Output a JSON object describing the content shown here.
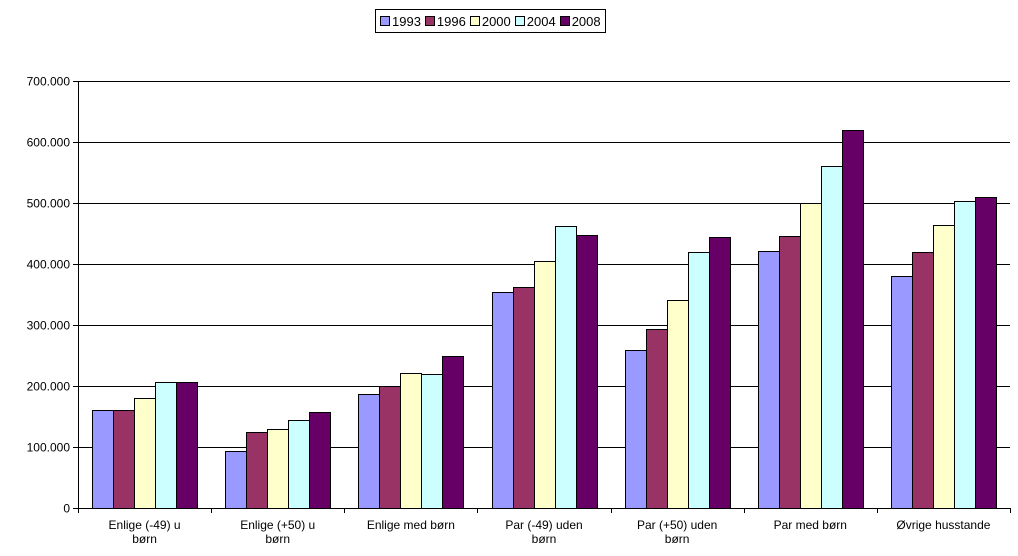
{
  "chart_data": {
    "type": "bar",
    "categories": [
      [
        "Enlige (-49) u",
        "børn"
      ],
      [
        "Enlige (+50) u",
        "børn"
      ],
      [
        "Enlige med børn"
      ],
      [
        "Par (-49) uden",
        "børn"
      ],
      [
        "Par (+50) uden",
        "børn"
      ],
      [
        "Par med børn"
      ],
      [
        "Øvrige husstande"
      ]
    ],
    "series": [
      {
        "name": "1993",
        "color": "#9999FF",
        "values": [
          160000,
          93000,
          187000,
          354000,
          259000,
          421000,
          381000
        ]
      },
      {
        "name": "1996",
        "color": "#993366",
        "values": [
          160000,
          124000,
          200000,
          362000,
          294000,
          446000,
          419000
        ]
      },
      {
        "name": "2000",
        "color": "#FFFFCC",
        "values": [
          181000,
          130000,
          222000,
          405000,
          341000,
          500000,
          464000
        ]
      },
      {
        "name": "2004",
        "color": "#CCFFFF",
        "values": [
          207000,
          145000,
          219000,
          463000,
          419000,
          561000,
          503000
        ]
      },
      {
        "name": "2008",
        "color": "#660066",
        "values": [
          206000,
          158000,
          250000,
          447000,
          445000,
          620000,
          510000
        ]
      }
    ],
    "ylim": [
      0,
      700000
    ],
    "yticks": [
      0,
      100000,
      200000,
      300000,
      400000,
      500000,
      600000,
      700000
    ],
    "ytick_labels": [
      "0",
      "100.000",
      "200.000",
      "300.000",
      "400.000",
      "500.000",
      "600.000",
      "700.000"
    ],
    "grid": true,
    "legend_position": "top-center"
  }
}
